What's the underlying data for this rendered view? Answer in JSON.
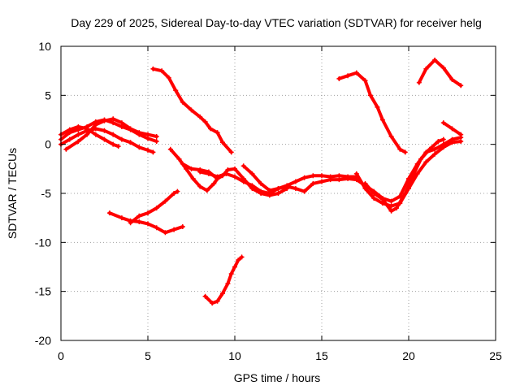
{
  "chart_data": {
    "type": "scatter",
    "title": "Day 229 of 2025, Sidereal Day-to-day VTEC variation (SDTVAR) for receiver helg",
    "xlabel": "GPS time / hours",
    "ylabel": "SDTVAR / TECUs",
    "xlim": [
      0,
      25
    ],
    "ylim": [
      -20,
      10
    ],
    "xticks": [
      0,
      5,
      10,
      15,
      20,
      25
    ],
    "yticks": [
      -20,
      -15,
      -10,
      -5,
      0,
      5,
      10
    ],
    "grid": true,
    "series_color": "#ff0000",
    "series": [
      {
        "name": "trace-a",
        "points": [
          [
            0.0,
            0.5
          ],
          [
            0.5,
            1.2
          ],
          [
            1.0,
            1.5
          ],
          [
            1.5,
            1.8
          ],
          [
            2.0,
            2.3
          ],
          [
            2.5,
            2.5
          ],
          [
            3.0,
            2.2
          ],
          [
            3.5,
            1.8
          ],
          [
            4.0,
            1.5
          ],
          [
            4.5,
            1.0
          ],
          [
            5.0,
            0.6
          ],
          [
            5.5,
            0.3
          ]
        ]
      },
      {
        "name": "trace-b",
        "points": [
          [
            0.0,
            0.0
          ],
          [
            0.5,
            0.5
          ],
          [
            1.0,
            1.0
          ],
          [
            1.5,
            1.4
          ],
          [
            2.0,
            1.6
          ],
          [
            2.5,
            1.4
          ],
          [
            3.0,
            1.0
          ],
          [
            3.5,
            0.5
          ],
          [
            4.0,
            0.2
          ],
          [
            4.5,
            -0.3
          ],
          [
            5.0,
            -0.6
          ],
          [
            5.3,
            -0.8
          ]
        ]
      },
      {
        "name": "trace-c",
        "points": [
          [
            0.3,
            -0.5
          ],
          [
            1.0,
            0.3
          ],
          [
            1.5,
            1.0
          ],
          [
            2.0,
            2.0
          ],
          [
            2.5,
            2.4
          ],
          [
            3.0,
            2.6
          ],
          [
            3.5,
            2.2
          ],
          [
            4.0,
            1.6
          ],
          [
            4.5,
            1.2
          ],
          [
            5.0,
            1.0
          ],
          [
            5.5,
            0.8
          ]
        ]
      },
      {
        "name": "trace-d",
        "points": [
          [
            0.0,
            1.0
          ],
          [
            0.5,
            1.5
          ],
          [
            1.0,
            1.8
          ],
          [
            1.5,
            1.6
          ],
          [
            2.0,
            1.0
          ],
          [
            2.5,
            0.5
          ],
          [
            3.0,
            0.0
          ],
          [
            3.3,
            -0.2
          ]
        ]
      },
      {
        "name": "trace-e",
        "points": [
          [
            5.3,
            7.7
          ],
          [
            5.8,
            7.5
          ],
          [
            6.2,
            6.8
          ],
          [
            6.6,
            5.5
          ],
          [
            7.0,
            4.3
          ],
          [
            7.5,
            3.5
          ],
          [
            8.0,
            2.8
          ],
          [
            8.3,
            2.3
          ],
          [
            8.6,
            1.6
          ],
          [
            9.0,
            1.2
          ],
          [
            9.3,
            0.2
          ],
          [
            9.8,
            -0.8
          ]
        ]
      },
      {
        "name": "trace-f",
        "points": [
          [
            6.3,
            -0.5
          ],
          [
            6.8,
            -1.5
          ],
          [
            7.2,
            -2.5
          ],
          [
            7.6,
            -3.5
          ],
          [
            8.0,
            -4.3
          ],
          [
            8.4,
            -4.7
          ],
          [
            8.8,
            -4.0
          ],
          [
            9.0,
            -3.5
          ]
        ]
      },
      {
        "name": "trace-g",
        "points": [
          [
            7.0,
            -2.0
          ],
          [
            7.5,
            -2.5
          ],
          [
            8.0,
            -2.6
          ],
          [
            8.5,
            -2.8
          ],
          [
            9.0,
            -3.5
          ],
          [
            9.3,
            -3.2
          ],
          [
            9.6,
            -2.6
          ],
          [
            10.0,
            -2.5
          ],
          [
            10.5,
            -3.5
          ],
          [
            11.0,
            -4.5
          ],
          [
            11.5,
            -5.0
          ],
          [
            12.0,
            -5.2
          ],
          [
            12.5,
            -5.0
          ],
          [
            13.0,
            -4.5
          ]
        ]
      },
      {
        "name": "trace-h",
        "points": [
          [
            8.0,
            -2.8
          ],
          [
            8.5,
            -3.0
          ],
          [
            9.0,
            -3.3
          ],
          [
            9.5,
            -3.0
          ],
          [
            10.0,
            -3.3
          ],
          [
            10.5,
            -3.8
          ],
          [
            11.0,
            -4.2
          ],
          [
            11.5,
            -4.8
          ],
          [
            12.0,
            -5.0
          ],
          [
            12.5,
            -4.5
          ],
          [
            13.0,
            -4.2
          ],
          [
            13.5,
            -3.8
          ],
          [
            14.0,
            -3.4
          ],
          [
            14.5,
            -3.2
          ],
          [
            15.0,
            -3.2
          ],
          [
            15.5,
            -3.3
          ],
          [
            16.0,
            -3.2
          ],
          [
            16.5,
            -3.3
          ],
          [
            17.0,
            -3.3
          ]
        ]
      },
      {
        "name": "trace-i",
        "points": [
          [
            10.5,
            -2.2
          ],
          [
            11.0,
            -3.0
          ],
          [
            11.5,
            -4.0
          ],
          [
            12.0,
            -4.7
          ],
          [
            12.5,
            -4.5
          ],
          [
            13.0,
            -4.3
          ],
          [
            13.5,
            -4.5
          ],
          [
            14.0,
            -4.8
          ],
          [
            14.5,
            -4.0
          ],
          [
            15.0,
            -3.8
          ],
          [
            15.5,
            -3.6
          ],
          [
            16.0,
            -3.6
          ],
          [
            16.5,
            -3.5
          ],
          [
            17.0,
            -3.6
          ],
          [
            17.5,
            -4.2
          ],
          [
            18.0,
            -4.8
          ],
          [
            18.5,
            -5.5
          ],
          [
            19.0,
            -5.8
          ],
          [
            19.5,
            -5.3
          ],
          [
            20.0,
            -3.5
          ],
          [
            20.5,
            -2.0
          ],
          [
            21.0,
            -0.8
          ],
          [
            21.5,
            -0.5
          ],
          [
            22.0,
            0.0
          ],
          [
            22.5,
            0.5
          ],
          [
            23.0,
            0.7
          ]
        ]
      },
      {
        "name": "trace-j",
        "points": [
          [
            17.0,
            -3.0
          ],
          [
            17.5,
            -4.5
          ],
          [
            18.0,
            -5.5
          ],
          [
            18.5,
            -6.0
          ],
          [
            19.0,
            -6.3
          ],
          [
            19.5,
            -6.0
          ],
          [
            20.0,
            -4.5
          ],
          [
            20.5,
            -3.0
          ],
          [
            21.0,
            -1.8
          ],
          [
            21.5,
            -1.0
          ],
          [
            22.0,
            -0.3
          ],
          [
            22.5,
            0.2
          ],
          [
            23.0,
            0.3
          ]
        ]
      },
      {
        "name": "trace-k",
        "points": [
          [
            17.5,
            -4.0
          ],
          [
            18.0,
            -5.0
          ],
          [
            18.5,
            -5.6
          ],
          [
            19.0,
            -6.8
          ],
          [
            19.3,
            -6.5
          ],
          [
            19.8,
            -5.0
          ],
          [
            20.3,
            -3.0
          ],
          [
            20.7,
            -1.5
          ],
          [
            21.2,
            -0.5
          ],
          [
            21.7,
            0.3
          ],
          [
            22.0,
            0.5
          ]
        ]
      },
      {
        "name": "trace-l",
        "points": [
          [
            16.0,
            6.7
          ],
          [
            16.5,
            7.0
          ],
          [
            17.0,
            7.3
          ],
          [
            17.5,
            6.5
          ],
          [
            17.8,
            5.0
          ],
          [
            18.2,
            3.8
          ],
          [
            18.5,
            2.5
          ],
          [
            19.0,
            0.8
          ],
          [
            19.5,
            -0.5
          ],
          [
            19.8,
            -0.8
          ]
        ]
      },
      {
        "name": "trace-m",
        "points": [
          [
            20.6,
            6.3
          ],
          [
            21.0,
            7.7
          ],
          [
            21.5,
            8.6
          ],
          [
            22.0,
            7.8
          ],
          [
            22.5,
            6.6
          ],
          [
            23.0,
            6.0
          ]
        ]
      },
      {
        "name": "trace-n",
        "points": [
          [
            22.0,
            2.2
          ],
          [
            22.5,
            1.6
          ],
          [
            23.0,
            1.0
          ]
        ]
      },
      {
        "name": "trace-o",
        "points": [
          [
            2.8,
            -7.0
          ],
          [
            3.5,
            -7.5
          ],
          [
            4.0,
            -7.8
          ],
          [
            4.5,
            -7.9
          ],
          [
            5.0,
            -8.1
          ],
          [
            5.5,
            -8.5
          ],
          [
            6.0,
            -9.0
          ],
          [
            6.5,
            -8.7
          ],
          [
            7.0,
            -8.4
          ]
        ]
      },
      {
        "name": "trace-p",
        "points": [
          [
            4.0,
            -8.0
          ],
          [
            4.5,
            -7.3
          ],
          [
            5.0,
            -7.0
          ],
          [
            5.5,
            -6.5
          ],
          [
            6.0,
            -5.8
          ],
          [
            6.5,
            -5.0
          ],
          [
            6.7,
            -4.8
          ]
        ]
      },
      {
        "name": "trace-q",
        "points": [
          [
            8.3,
            -15.5
          ],
          [
            8.7,
            -16.2
          ],
          [
            9.0,
            -16.0
          ],
          [
            9.3,
            -15.2
          ],
          [
            9.6,
            -14.2
          ],
          [
            9.8,
            -13.2
          ],
          [
            10.0,
            -12.5
          ],
          [
            10.2,
            -11.8
          ],
          [
            10.4,
            -11.5
          ]
        ]
      }
    ]
  }
}
